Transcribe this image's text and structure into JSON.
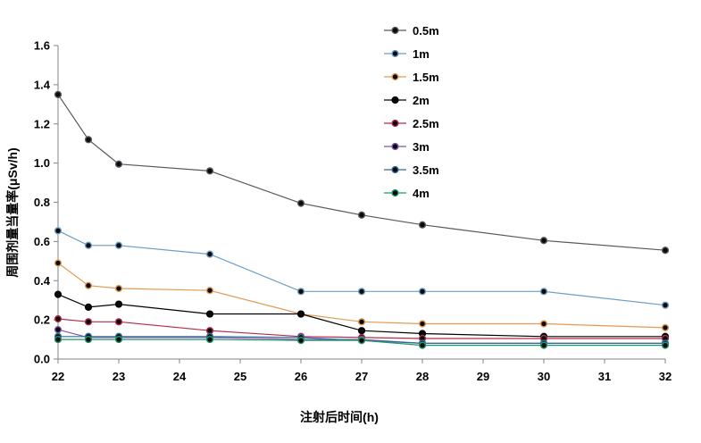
{
  "chart_data": {
    "type": "line",
    "xlabel": "注射后时间(h)",
    "ylabel": "周围剂量当量率(μSv/h)",
    "xlim": [
      22,
      32
    ],
    "ylim": [
      0,
      1.6
    ],
    "x_ticks": [
      "22",
      "23",
      "24",
      "25",
      "26",
      "27",
      "28",
      "29",
      "30",
      "31",
      "32"
    ],
    "y_ticks": [
      "0.0",
      "0.2",
      "0.4",
      "0.6",
      "0.8",
      "1.0",
      "1.2",
      "1.4",
      "1.6"
    ],
    "grid": false,
    "legend_position": "top-right",
    "x": [
      22,
      22.5,
      23,
      24.5,
      26,
      27,
      28,
      30,
      32
    ],
    "series": [
      {
        "name": "0.5m",
        "color": "#555a5f",
        "values": [
          1.35,
          1.12,
          0.995,
          0.96,
          0.795,
          0.735,
          0.685,
          0.605,
          0.555
        ]
      },
      {
        "name": "1m",
        "color": "#6a9cc6",
        "values": [
          0.655,
          0.58,
          0.58,
          0.535,
          0.345,
          0.345,
          0.345,
          0.345,
          0.275
        ]
      },
      {
        "name": "1.5m",
        "color": "#e39a52",
        "values": [
          0.49,
          0.375,
          0.36,
          0.35,
          0.23,
          0.19,
          0.18,
          0.18,
          0.16
        ]
      },
      {
        "name": "2m",
        "color": "#000000",
        "values": [
          0.33,
          0.265,
          0.28,
          0.23,
          0.23,
          0.145,
          0.13,
          0.115,
          0.115
        ]
      },
      {
        "name": "2.5m",
        "color": "#b22b4a",
        "values": [
          0.205,
          0.19,
          0.19,
          0.145,
          0.115,
          0.11,
          0.105,
          0.105,
          0.105
        ]
      },
      {
        "name": "3m",
        "color": "#7f57a6",
        "values": [
          0.15,
          0.11,
          0.11,
          0.11,
          0.1,
          0.1,
          0.08,
          0.08,
          0.08
        ]
      },
      {
        "name": "3.5m",
        "color": "#2e6e9e",
        "values": [
          0.115,
          0.115,
          0.115,
          0.115,
          0.11,
          0.095,
          0.08,
          0.08,
          0.08
        ]
      },
      {
        "name": "4m",
        "color": "#1d9a68",
        "values": [
          0.1,
          0.1,
          0.1,
          0.1,
          0.095,
          0.095,
          0.07,
          0.07,
          0.07
        ]
      }
    ]
  }
}
